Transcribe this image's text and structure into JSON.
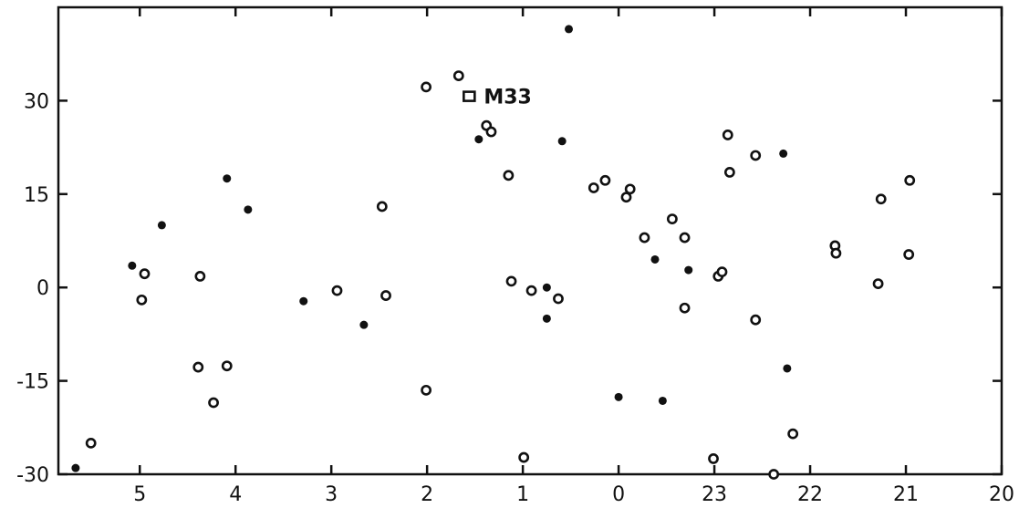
{
  "chart_data": {
    "type": "scatter",
    "title": "",
    "xlabel": "",
    "ylabel": "",
    "x_axis_reversed": true,
    "x_unit": "hours of right ascension",
    "xlim": [
      5.85,
      20
    ],
    "ylim": [
      -30,
      45
    ],
    "grid": false,
    "x_ticks": [
      {
        "value": 5,
        "label": "5"
      },
      {
        "value": 4,
        "label": "4"
      },
      {
        "value": 3,
        "label": "3"
      },
      {
        "value": 2,
        "label": "2"
      },
      {
        "value": 1,
        "label": "1"
      },
      {
        "value": 0,
        "label": "0"
      },
      {
        "value": 23,
        "label": "23"
      },
      {
        "value": 22,
        "label": "22"
      },
      {
        "value": 21,
        "label": "21"
      },
      {
        "value": 20,
        "label": "20"
      }
    ],
    "y_ticks": [
      {
        "value": 30,
        "label": "30"
      },
      {
        "value": 15,
        "label": "15"
      },
      {
        "value": 0,
        "label": "0"
      },
      {
        "value": -15,
        "label": "-15"
      },
      {
        "value": -30,
        "label": "-30"
      }
    ],
    "series": [
      {
        "marker": "filled-circle",
        "points": [
          {
            "x": 5.67,
            "y": -29
          },
          {
            "x": 5.08,
            "y": 3.5
          },
          {
            "x": 4.77,
            "y": 10
          },
          {
            "x": 4.09,
            "y": 17.5
          },
          {
            "x": 3.87,
            "y": 12.5
          },
          {
            "x": 3.29,
            "y": -2.2
          },
          {
            "x": 2.66,
            "y": -6
          },
          {
            "x": 1.46,
            "y": 23.8
          },
          {
            "x": 0.52,
            "y": 41.5
          },
          {
            "x": 0.59,
            "y": 23.5
          },
          {
            "x": 0.75,
            "y": 0
          },
          {
            "x": 0.75,
            "y": -5
          },
          {
            "x": 0.0,
            "y": -17.6
          },
          {
            "x": 23.62,
            "y": 4.5
          },
          {
            "x": 23.54,
            "y": -18.2
          },
          {
            "x": 23.27,
            "y": 2.8
          },
          {
            "x": 22.28,
            "y": 21.5
          },
          {
            "x": 22.24,
            "y": -13
          }
        ]
      },
      {
        "marker": "open-circle",
        "points": [
          {
            "x": 5.51,
            "y": -25
          },
          {
            "x": 4.95,
            "y": 2.2
          },
          {
            "x": 4.98,
            "y": -2
          },
          {
            "x": 4.37,
            "y": 1.8
          },
          {
            "x": 4.39,
            "y": -12.8
          },
          {
            "x": 4.23,
            "y": -18.5
          },
          {
            "x": 4.09,
            "y": -12.6
          },
          {
            "x": 2.94,
            "y": -0.5
          },
          {
            "x": 2.47,
            "y": 13
          },
          {
            "x": 2.43,
            "y": -1.3
          },
          {
            "x": 2.01,
            "y": 32.2
          },
          {
            "x": 2.01,
            "y": -16.5
          },
          {
            "x": 1.67,
            "y": 34
          },
          {
            "x": 1.38,
            "y": 26
          },
          {
            "x": 1.33,
            "y": 25
          },
          {
            "x": 1.15,
            "y": 18
          },
          {
            "x": 1.12,
            "y": 1
          },
          {
            "x": 0.91,
            "y": -0.5
          },
          {
            "x": 0.63,
            "y": -1.8
          },
          {
            "x": 0.99,
            "y": -27.3
          },
          {
            "x": 0.26,
            "y": 16
          },
          {
            "x": 0.14,
            "y": 17.2
          },
          {
            "x": 23.92,
            "y": 14.5
          },
          {
            "x": 23.88,
            "y": 15.8
          },
          {
            "x": 23.73,
            "y": 8
          },
          {
            "x": 23.44,
            "y": 11
          },
          {
            "x": 23.31,
            "y": 8
          },
          {
            "x": 23.31,
            "y": -3.3
          },
          {
            "x": 22.96,
            "y": 1.8
          },
          {
            "x": 22.92,
            "y": 2.5
          },
          {
            "x": 22.86,
            "y": 24.5
          },
          {
            "x": 22.84,
            "y": 18.5
          },
          {
            "x": 22.57,
            "y": 21.2
          },
          {
            "x": 22.57,
            "y": -5.2
          },
          {
            "x": 23.01,
            "y": -27.5
          },
          {
            "x": 22.38,
            "y": -30
          },
          {
            "x": 22.18,
            "y": -23.5
          },
          {
            "x": 21.74,
            "y": 6.7
          },
          {
            "x": 21.73,
            "y": 5.5
          },
          {
            "x": 21.26,
            "y": 14.2
          },
          {
            "x": 21.29,
            "y": 0.6
          },
          {
            "x": 20.96,
            "y": 17.2
          },
          {
            "x": 20.97,
            "y": 5.3
          }
        ]
      },
      {
        "marker": "open-square",
        "points": [
          {
            "x": 1.56,
            "y": 30.7
          }
        ]
      }
    ],
    "annotations": [
      {
        "text": "M33",
        "x": 1.56,
        "y": 30.7
      }
    ]
  }
}
